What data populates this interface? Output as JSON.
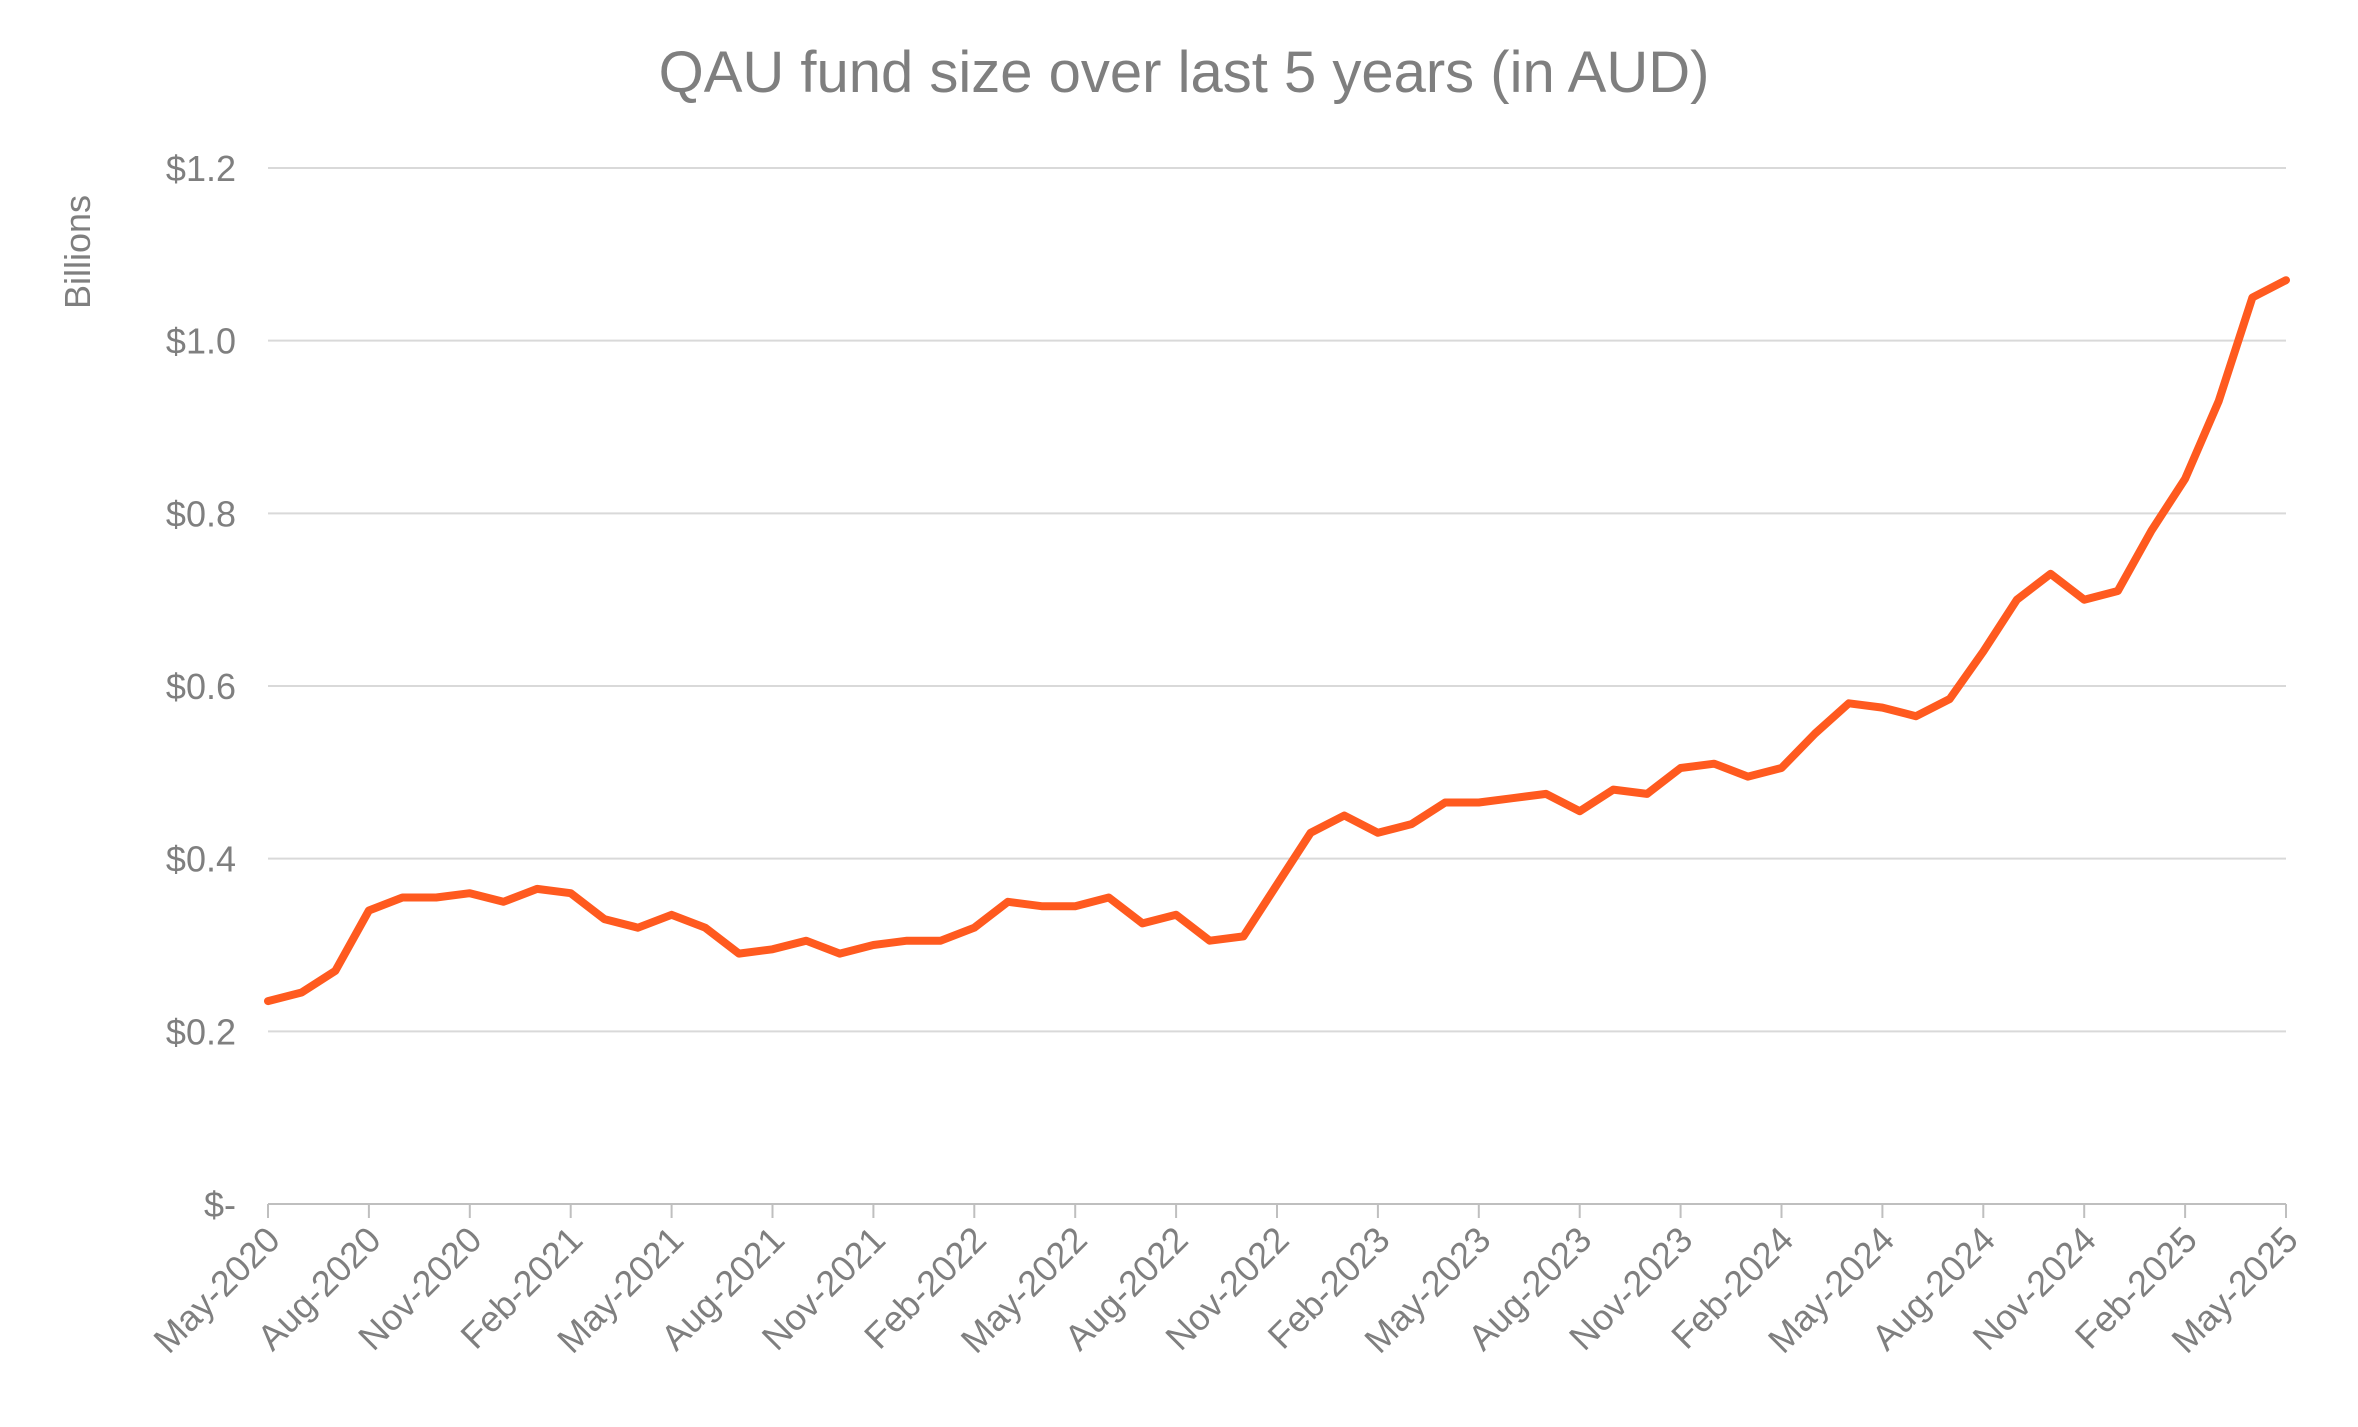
{
  "chart_data": {
    "type": "line",
    "title": "QAU fund size over last 5 years (in AUD)",
    "xlabel": "",
    "ylabel": "Billions",
    "ylim": [
      0,
      1.2
    ],
    "y_ticks": [
      {
        "value": 0,
        "label": "$-"
      },
      {
        "value": 0.2,
        "label": "$0.2"
      },
      {
        "value": 0.4,
        "label": "$0.4"
      },
      {
        "value": 0.6,
        "label": "$0.6"
      },
      {
        "value": 0.8,
        "label": "$0.8"
      },
      {
        "value": 1.0,
        "label": "$1.0"
      },
      {
        "value": 1.2,
        "label": "$1.2"
      }
    ],
    "x_ticks": [
      "May-2020",
      "Aug-2020",
      "Nov-2020",
      "Feb-2021",
      "May-2021",
      "Aug-2021",
      "Nov-2021",
      "Feb-2022",
      "May-2022",
      "Aug-2022",
      "Nov-2022",
      "Feb-2023",
      "May-2023",
      "Aug-2023",
      "Nov-2023",
      "Feb-2024",
      "May-2024",
      "Aug-2024",
      "Nov-2024",
      "Feb-2025",
      "May-2025"
    ],
    "grid": true,
    "legend": "none",
    "color": "#ff5a1f",
    "series": [
      {
        "x": [
          "May-2020",
          "Jun-2020",
          "Jul-2020",
          "Aug-2020",
          "Sep-2020",
          "Oct-2020",
          "Nov-2020",
          "Dec-2020",
          "Jan-2021",
          "Feb-2021",
          "Mar-2021",
          "Apr-2021",
          "May-2021",
          "Jun-2021",
          "Jul-2021",
          "Aug-2021",
          "Sep-2021",
          "Oct-2021",
          "Nov-2021",
          "Dec-2021",
          "Jan-2022",
          "Feb-2022",
          "Mar-2022",
          "Apr-2022",
          "May-2022",
          "Jun-2022",
          "Jul-2022",
          "Aug-2022",
          "Sep-2022",
          "Oct-2022",
          "Nov-2022",
          "Dec-2022",
          "Jan-2023",
          "Feb-2023",
          "Mar-2023",
          "Apr-2023",
          "May-2023",
          "Jun-2023",
          "Jul-2023",
          "Aug-2023",
          "Sep-2023",
          "Oct-2023",
          "Nov-2023",
          "Dec-2023",
          "Jan-2024",
          "Feb-2024",
          "Mar-2024",
          "Apr-2024",
          "May-2024",
          "Jun-2024",
          "Jul-2024",
          "Aug-2024",
          "Sep-2024",
          "Oct-2024",
          "Nov-2024",
          "Dec-2024",
          "Jan-2025",
          "Feb-2025",
          "Mar-2025",
          "Apr-2025",
          "May-2025"
        ],
        "values": [
          0.235,
          0.245,
          0.27,
          0.34,
          0.355,
          0.355,
          0.36,
          0.35,
          0.365,
          0.36,
          0.33,
          0.32,
          0.335,
          0.32,
          0.29,
          0.295,
          0.305,
          0.29,
          0.3,
          0.305,
          0.305,
          0.32,
          0.35,
          0.345,
          0.345,
          0.355,
          0.325,
          0.335,
          0.305,
          0.31,
          0.37,
          0.43,
          0.45,
          0.43,
          0.44,
          0.465,
          0.465,
          0.47,
          0.475,
          0.455,
          0.48,
          0.475,
          0.505,
          0.51,
          0.495,
          0.505,
          0.545,
          0.58,
          0.575,
          0.565,
          0.585,
          0.64,
          0.7,
          0.73,
          0.7,
          0.71,
          0.78,
          0.84,
          0.93,
          1.05,
          1.07
        ]
      }
    ]
  }
}
